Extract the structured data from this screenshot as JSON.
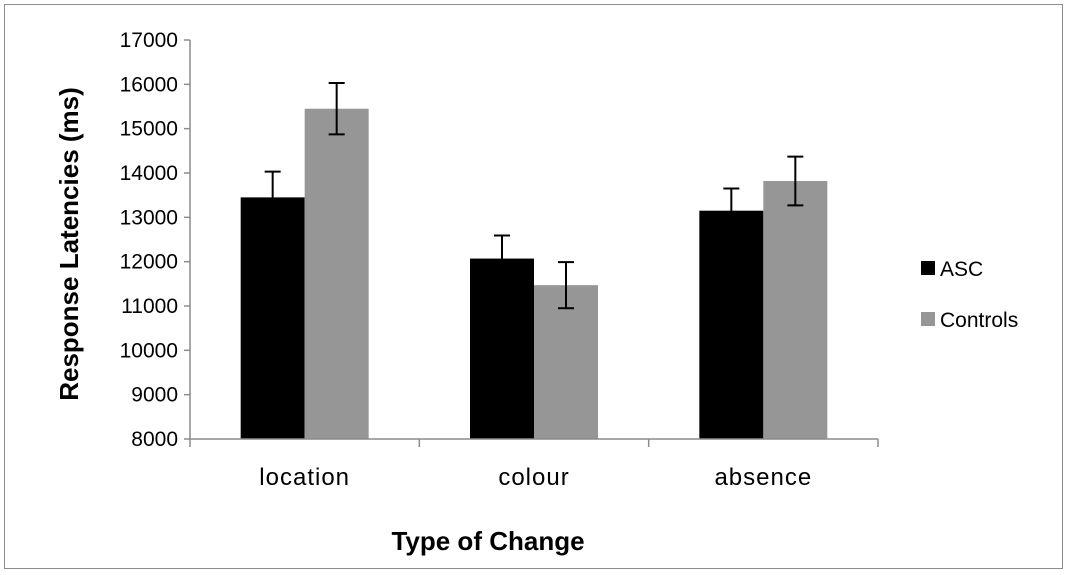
{
  "chart_data": {
    "type": "bar",
    "title": "",
    "xlabel": "Type of Change",
    "ylabel": "Response Latencies (ms)",
    "categories": [
      "location",
      "colour",
      "absence"
    ],
    "ylim": [
      8000,
      17000
    ],
    "yticks": [
      8000,
      9000,
      10000,
      11000,
      12000,
      13000,
      14000,
      15000,
      16000,
      17000
    ],
    "grid": false,
    "legend_position": "right",
    "error_bars": true,
    "series": [
      {
        "name": "ASC",
        "color": "#000000",
        "values": [
          13450,
          12070,
          13150
        ],
        "errors": [
          580,
          520,
          500
        ]
      },
      {
        "name": "Controls",
        "color": "#969696",
        "values": [
          15450,
          11470,
          13820
        ],
        "errors": [
          580,
          520,
          550
        ]
      }
    ]
  }
}
